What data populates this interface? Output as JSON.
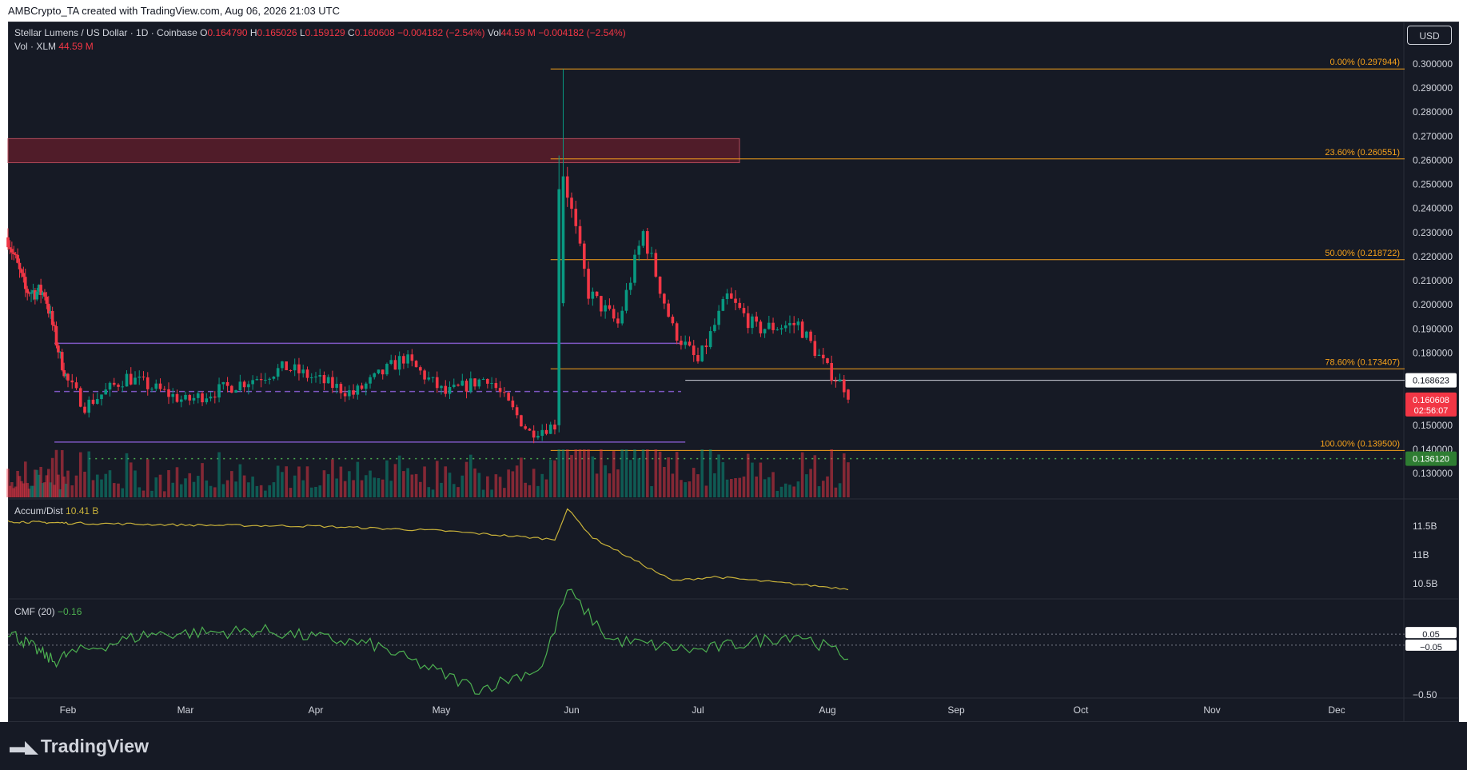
{
  "header": {
    "attribution": "AMBCrypto_TA created with TradingView.com, Aug 06, 2026 21:03 UTC"
  },
  "legend": {
    "symbol": "Stellar Lumens / US Dollar · 1D · Coinbase",
    "o_label": "O",
    "o": "0.164790",
    "h_label": "H",
    "h": "0.165026",
    "l_label": "L",
    "l": "0.159129",
    "c_label": "C",
    "c": "0.160608",
    "chg": "−0.004182 (−2.54%)",
    "vol_label": "Vol",
    "vol": "44.59 M",
    "vol_chg": "−0.004182 (−2.54%)",
    "vol_row_label": "Vol · XLM",
    "vol_row_value": "44.59 M",
    "ad_label": "Accum/Dist",
    "ad_value": "10.41 B",
    "cmf_label": "CMF (20)",
    "cmf_value": "−0.16"
  },
  "currency_button": "USD",
  "brand": "TradingView",
  "colors": {
    "up": "#089981",
    "down": "#f23645",
    "fib": "#f7a21b",
    "range": "#7e57c2",
    "support": "#4caf50",
    "zone": "#5b1d2a",
    "ad_line": "#c9b23a",
    "cmf_line": "#4caf50"
  },
  "chart_data": [
    {
      "type": "candlestick",
      "title": "Stellar Lumens / US Dollar · 1D · Coinbase",
      "price_axis_labels": [
        "0.300000",
        "0.290000",
        "0.280000",
        "0.270000",
        "0.260000",
        "0.250000",
        "0.240000",
        "0.230000",
        "0.220000",
        "0.210000",
        "0.200000",
        "0.190000",
        "0.180000",
        "0.150000",
        "0.140000",
        "0.130000"
      ],
      "ylim": [
        0.125,
        0.305
      ],
      "x_tick_labels": [
        "Feb",
        "Mar",
        "Apr",
        "May",
        "Jun",
        "Jul",
        "Aug",
        "Sep",
        "Oct",
        "Nov",
        "Dec"
      ],
      "ohlc_waypoints": [
        {
          "date": "2026-01-01",
          "close": 0.228
        },
        {
          "date": "2026-01-10",
          "close": 0.206
        },
        {
          "date": "2026-01-20",
          "close": 0.205
        },
        {
          "date": "2026-01-28",
          "close": 0.178
        },
        {
          "date": "2026-02-05",
          "close": 0.158
        },
        {
          "date": "2026-02-15",
          "close": 0.17
        },
        {
          "date": "2026-03-01",
          "close": 0.16
        },
        {
          "date": "2026-03-15",
          "close": 0.168
        },
        {
          "date": "2026-03-25",
          "close": 0.174
        },
        {
          "date": "2026-04-10",
          "close": 0.163
        },
        {
          "date": "2026-04-22",
          "close": 0.178
        },
        {
          "date": "2026-05-02",
          "close": 0.163
        },
        {
          "date": "2026-05-12",
          "close": 0.17
        },
        {
          "date": "2026-05-22",
          "close": 0.147
        },
        {
          "date": "2026-05-28",
          "close": 0.15
        },
        {
          "date": "2026-05-30",
          "close": 0.255
        },
        {
          "date": "2026-06-05",
          "close": 0.205
        },
        {
          "date": "2026-06-12",
          "close": 0.192
        },
        {
          "date": "2026-06-18",
          "close": 0.23
        },
        {
          "date": "2026-06-25",
          "close": 0.19
        },
        {
          "date": "2026-07-01",
          "close": 0.176
        },
        {
          "date": "2026-07-08",
          "close": 0.203
        },
        {
          "date": "2026-07-15",
          "close": 0.19
        },
        {
          "date": "2026-07-25",
          "close": 0.192
        },
        {
          "date": "2026-08-01",
          "close": 0.173
        },
        {
          "date": "2026-08-05",
          "close": 0.166
        },
        {
          "date": "2026-08-06",
          "open": 0.16479,
          "high": 0.165026,
          "low": 0.159129,
          "close": 0.160608
        }
      ],
      "spike_high": 0.2979,
      "fib_levels": [
        {
          "label": "0.00% (0.297944)",
          "value": 0.297944
        },
        {
          "label": "23.60% (0.260551)",
          "value": 0.260551
        },
        {
          "label": "50.00% (0.218722)",
          "value": 0.218722
        },
        {
          "label": "78.60% (0.173407)",
          "value": 0.173407
        },
        {
          "label": "100.00% (0.139500)",
          "value": 0.1395
        }
      ],
      "range_top": 0.184,
      "range_mid": 0.164,
      "range_bottom": 0.143,
      "resistance_zone": [
        0.259,
        0.269
      ],
      "horizontal_line": {
        "label": "0.168623",
        "value": 0.168623
      },
      "support_line": {
        "label": "0.136120",
        "value": 0.13612
      },
      "last_price": {
        "label": "0.160608",
        "countdown": "02:56:07",
        "value": 0.160608
      },
      "volume_last": "44.59 M"
    },
    {
      "type": "line",
      "title": "Accum/Dist",
      "y_tick_labels": [
        "11.5B",
        "11B",
        "10.5B"
      ],
      "ylim": [
        10.45,
        11.85
      ],
      "waypoints": [
        {
          "date": "2026-01-01",
          "value": 11.58
        },
        {
          "date": "2026-02-05",
          "value": 11.55
        },
        {
          "date": "2026-03-01",
          "value": 11.52
        },
        {
          "date": "2026-04-01",
          "value": 11.5
        },
        {
          "date": "2026-05-01",
          "value": 11.42
        },
        {
          "date": "2026-05-28",
          "value": 11.27
        },
        {
          "date": "2026-05-31",
          "value": 11.8
        },
        {
          "date": "2026-06-06",
          "value": 11.3
        },
        {
          "date": "2026-06-25",
          "value": 10.55
        },
        {
          "date": "2026-07-05",
          "value": 10.62
        },
        {
          "date": "2026-08-06",
          "value": 10.41
        }
      ]
    },
    {
      "type": "line",
      "title": "CMF (20)",
      "y_tick_labels": [
        "0.05",
        "−0.05",
        "−0.50"
      ],
      "ylim": [
        -0.55,
        0.6
      ],
      "waypoints": [
        {
          "date": "2026-01-01",
          "value": 0.08
        },
        {
          "date": "2026-01-25",
          "value": -0.2
        },
        {
          "date": "2026-02-20",
          "value": 0.05
        },
        {
          "date": "2026-03-20",
          "value": 0.08
        },
        {
          "date": "2026-04-15",
          "value": -0.05
        },
        {
          "date": "2026-05-10",
          "value": -0.45
        },
        {
          "date": "2026-05-25",
          "value": -0.25
        },
        {
          "date": "2026-05-31",
          "value": 0.45
        },
        {
          "date": "2026-06-10",
          "value": 0.0
        },
        {
          "date": "2026-07-01",
          "value": -0.1
        },
        {
          "date": "2026-07-25",
          "value": 0.05
        },
        {
          "date": "2026-08-06",
          "value": -0.16
        }
      ]
    }
  ]
}
